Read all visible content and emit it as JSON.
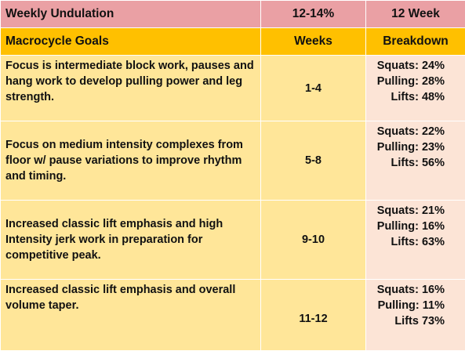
{
  "header_row": {
    "title": "Weekly Undulation",
    "intensity": "12-14%",
    "duration": "12 Week"
  },
  "column_headers": {
    "goals": "Macrocycle Goals",
    "weeks": "Weeks",
    "breakdown": "Breakdown"
  },
  "rows": [
    {
      "goal": "Focus is intermediate block work, pauses and hang work to develop pulling power and leg strength.",
      "weeks": "1-4",
      "squats": "Squats: 24%",
      "pulling": "Pulling: 28%",
      "lifts": "Lifts: 48%"
    },
    {
      "goal": "Focus on medium intensity complexes from floor w/ pause variations to improve rhythm and timing.",
      "weeks": "5-8",
      "squats": "Squats: 22%",
      "pulling": "Pulling: 23%",
      "lifts": "Lifts: 56%"
    },
    {
      "goal": "Increased classic lift emphasis and high Intensity jerk work in preparation for competitive peak.",
      "weeks": "9-10",
      "squats": "Squats: 21%",
      "pulling": "Pulling: 16%",
      "lifts": "Lifts: 63%"
    },
    {
      "goal": "Increased classic lift emphasis and overall volume taper.",
      "weeks": "11-12",
      "squats": "Squats: 16%",
      "pulling": "Pulling: 11%",
      "lifts": "Lifts 73%"
    }
  ],
  "colors": {
    "title_row": "#eaa0a4",
    "header_row": "#ffc000",
    "body_cells": "#ffe699",
    "breakdown_cells": "#fce4d6"
  }
}
